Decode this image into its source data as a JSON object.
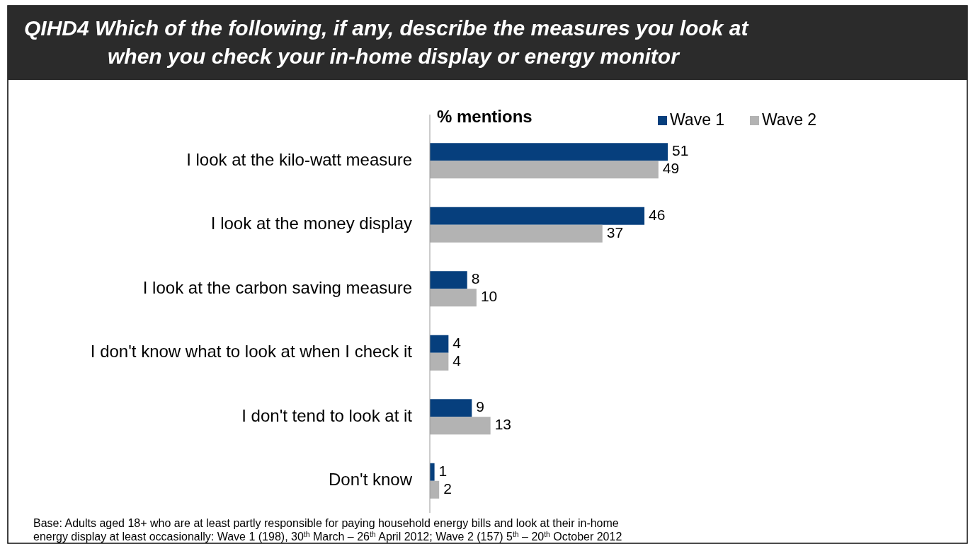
{
  "chart_data": {
    "type": "bar",
    "orientation": "horizontal",
    "title": "QIHD4 Which of the following, if any, describe the measures you look at when you check your in-home display or energy monitor",
    "xlabel": "% mentions",
    "categories": [
      "I look at the kilo-watt measure",
      "I look at the money display",
      "I look at the carbon saving measure",
      "I don't know what to look at when I check it",
      "I don't tend to look at it",
      "Don't know"
    ],
    "series": [
      {
        "name": "Wave 1",
        "color": "#063f7d",
        "values": [
          51,
          46,
          8,
          4,
          9,
          1
        ]
      },
      {
        "name": "Wave 2",
        "color": "#b3b3b3",
        "values": [
          49,
          37,
          10,
          4,
          13,
          2
        ]
      }
    ],
    "data_labels": true,
    "legend": "top right",
    "annotations": [
      "Base:  Adults aged 18+ who are at least partly responsible for paying household energy bills and look at their in-home energy display at least occasionally: Wave 1 (198), 30$^{th}$ March – 26$^{th}$ April 2012; Wave 2 (157) 5$^{th}$ – 20$^{th}$ October 2012"
    ]
  }
}
